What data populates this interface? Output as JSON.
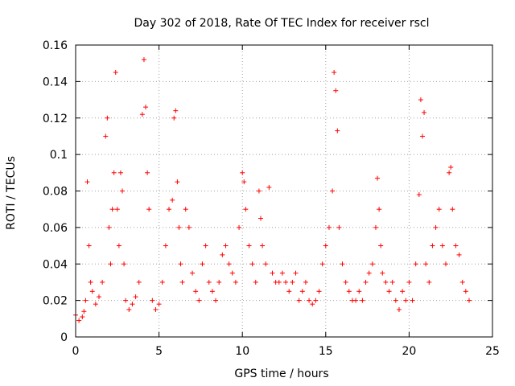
{
  "chart_data": {
    "type": "scatter",
    "title": "Day 302 of 2018, Rate Of TEC Index for receiver rscl",
    "xlabel": "GPS time / hours",
    "ylabel": "ROTI / TECUs",
    "xlim": [
      0,
      25
    ],
    "ylim": [
      0,
      0.16
    ],
    "xticks": [
      0,
      5,
      10,
      15,
      20,
      25
    ],
    "xtick_labels": [
      "0",
      "5",
      "10",
      "15",
      "20",
      "25"
    ],
    "yticks": [
      0,
      0.02,
      0.04,
      0.06,
      0.08,
      0.1,
      0.12,
      0.14,
      0.16
    ],
    "ytick_labels": [
      "0",
      "0.02",
      "0.04",
      "0.06",
      "0.08",
      "0.1",
      "0.12",
      "0.14",
      "0.16"
    ],
    "grid": true,
    "marker": "+",
    "color": "#ff0000",
    "series": [
      {
        "name": "ROTI",
        "x": [
          0.0,
          0.2,
          0.4,
          0.5,
          0.6,
          0.7,
          0.8,
          0.9,
          1.0,
          1.2,
          1.4,
          1.6,
          1.8,
          1.9,
          2.0,
          2.1,
          2.2,
          2.3,
          2.4,
          2.5,
          2.6,
          2.7,
          2.8,
          2.9,
          3.0,
          3.2,
          3.4,
          3.6,
          3.8,
          4.0,
          4.1,
          4.2,
          4.3,
          4.4,
          4.6,
          4.8,
          5.0,
          5.2,
          5.4,
          5.6,
          5.8,
          5.9,
          6.0,
          6.1,
          6.2,
          6.3,
          6.4,
          6.6,
          6.8,
          7.0,
          7.2,
          7.4,
          7.6,
          7.8,
          8.0,
          8.2,
          8.4,
          8.6,
          8.8,
          9.0,
          9.2,
          9.4,
          9.6,
          9.8,
          10.0,
          10.1,
          10.2,
          10.4,
          10.6,
          10.8,
          11.0,
          11.1,
          11.2,
          11.4,
          11.6,
          11.8,
          12.0,
          12.2,
          12.4,
          12.6,
          12.8,
          13.0,
          13.2,
          13.4,
          13.6,
          13.8,
          14.0,
          14.2,
          14.4,
          14.6,
          14.8,
          15.0,
          15.2,
          15.4,
          15.5,
          15.6,
          15.7,
          15.8,
          16.0,
          16.2,
          16.4,
          16.6,
          16.8,
          17.0,
          17.2,
          17.4,
          17.6,
          17.8,
          18.0,
          18.1,
          18.2,
          18.3,
          18.4,
          18.6,
          18.8,
          19.0,
          19.2,
          19.4,
          19.6,
          19.8,
          20.0,
          20.2,
          20.4,
          20.6,
          20.7,
          20.8,
          20.9,
          21.0,
          21.2,
          21.4,
          21.6,
          21.8,
          22.0,
          22.2,
          22.4,
          22.5,
          22.6,
          22.8,
          23.0,
          23.2,
          23.4,
          23.6
        ],
        "y": [
          0.012,
          0.009,
          0.011,
          0.014,
          0.02,
          0.085,
          0.05,
          0.03,
          0.025,
          0.018,
          0.022,
          0.03,
          0.11,
          0.12,
          0.06,
          0.04,
          0.07,
          0.09,
          0.145,
          0.07,
          0.05,
          0.09,
          0.08,
          0.04,
          0.02,
          0.015,
          0.018,
          0.022,
          0.03,
          0.122,
          0.152,
          0.126,
          0.09,
          0.07,
          0.02,
          0.015,
          0.018,
          0.03,
          0.05,
          0.07,
          0.075,
          0.12,
          0.124,
          0.085,
          0.06,
          0.04,
          0.03,
          0.07,
          0.06,
          0.035,
          0.025,
          0.02,
          0.04,
          0.05,
          0.03,
          0.025,
          0.02,
          0.03,
          0.045,
          0.05,
          0.04,
          0.035,
          0.03,
          0.06,
          0.09,
          0.085,
          0.07,
          0.05,
          0.04,
          0.03,
          0.08,
          0.065,
          0.05,
          0.04,
          0.082,
          0.035,
          0.03,
          0.03,
          0.035,
          0.03,
          0.025,
          0.03,
          0.035,
          0.02,
          0.025,
          0.03,
          0.02,
          0.018,
          0.02,
          0.025,
          0.04,
          0.05,
          0.06,
          0.08,
          0.145,
          0.135,
          0.113,
          0.06,
          0.04,
          0.03,
          0.025,
          0.02,
          0.02,
          0.025,
          0.02,
          0.03,
          0.035,
          0.04,
          0.06,
          0.087,
          0.07,
          0.05,
          0.035,
          0.03,
          0.025,
          0.03,
          0.02,
          0.015,
          0.025,
          0.02,
          0.03,
          0.02,
          0.04,
          0.078,
          0.13,
          0.11,
          0.123,
          0.04,
          0.03,
          0.05,
          0.06,
          0.07,
          0.05,
          0.04,
          0.09,
          0.093,
          0.07,
          0.05,
          0.045,
          0.03,
          0.025,
          0.02
        ]
      }
    ]
  }
}
